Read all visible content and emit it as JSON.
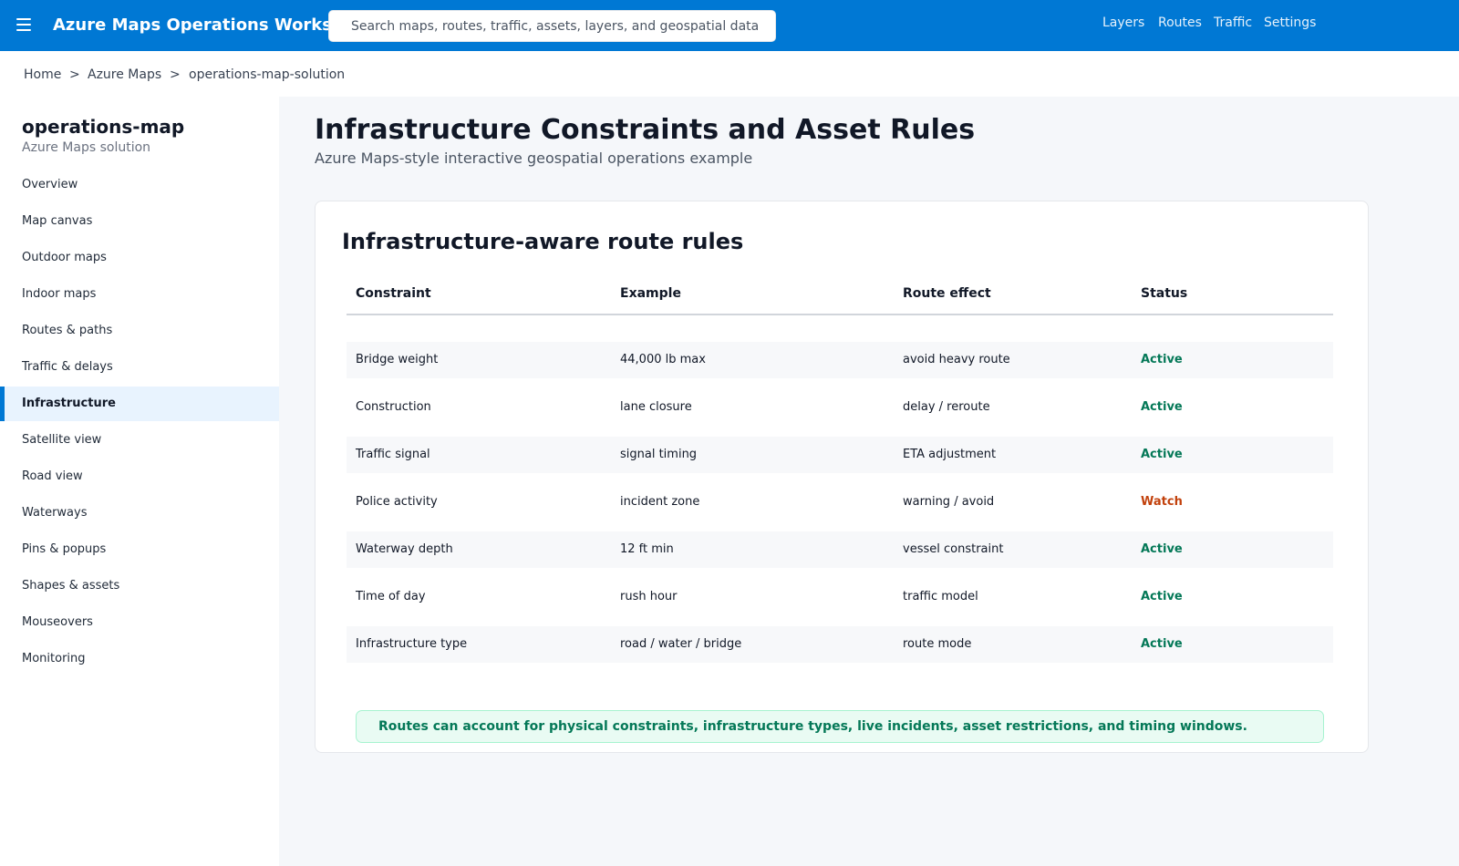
{
  "header": {
    "app_title": "Azure Maps Operations Workspace",
    "search_placeholder": "Search maps, routes, traffic, assets, layers, and geospatial data",
    "menu_icon": "hamburger-menu-icon",
    "nav": [
      "Layers",
      "Routes",
      "Traffic",
      "Settings"
    ]
  },
  "breadcrumb": {
    "items": [
      "Home",
      "Azure Maps",
      "operations-map-solution"
    ],
    "separator": ">"
  },
  "sidebar": {
    "title": "operations-map",
    "subtitle": "Azure Maps solution",
    "items": [
      {
        "label": "Overview",
        "active": false
      },
      {
        "label": "Map canvas",
        "active": false
      },
      {
        "label": "Outdoor maps",
        "active": false
      },
      {
        "label": "Indoor maps",
        "active": false
      },
      {
        "label": "Routes & paths",
        "active": false
      },
      {
        "label": "Traffic & delays",
        "active": false
      },
      {
        "label": "Infrastructure",
        "active": true
      },
      {
        "label": "Satellite view",
        "active": false
      },
      {
        "label": "Road view",
        "active": false
      },
      {
        "label": "Waterways",
        "active": false
      },
      {
        "label": "Pins & popups",
        "active": false
      },
      {
        "label": "Shapes & assets",
        "active": false
      },
      {
        "label": "Mouseovers",
        "active": false
      },
      {
        "label": "Monitoring",
        "active": false
      }
    ]
  },
  "main": {
    "title": "Infrastructure Constraints and Asset Rules",
    "subtitle": "Azure Maps-style interactive geospatial operations example",
    "card": {
      "title": "Infrastructure-aware route rules",
      "columns": [
        "Constraint",
        "Example",
        "Route effect",
        "Status"
      ],
      "rows": [
        {
          "constraint": "Bridge weight",
          "example": "44,000 lb max",
          "effect": "avoid heavy route",
          "status": "Active"
        },
        {
          "constraint": "Construction",
          "example": "lane closure",
          "effect": "delay / reroute",
          "status": "Active"
        },
        {
          "constraint": "Traffic signal",
          "example": "signal timing",
          "effect": "ETA adjustment",
          "status": "Active"
        },
        {
          "constraint": "Police activity",
          "example": "incident zone",
          "effect": "warning / avoid",
          "status": "Watch"
        },
        {
          "constraint": "Waterway depth",
          "example": "12 ft min",
          "effect": "vessel constraint",
          "status": "Active"
        },
        {
          "constraint": "Time of day",
          "example": "rush hour",
          "effect": "traffic model",
          "status": "Active"
        },
        {
          "constraint": "Infrastructure type",
          "example": "road / water / bridge",
          "effect": "route mode",
          "status": "Active"
        }
      ],
      "banner": "Routes can account for physical constraints, infrastructure types, live incidents, asset restrictions, and timing windows."
    }
  },
  "colors": {
    "brand": "#0078d4",
    "status_active": "#047857",
    "status_watch": "#c2410c",
    "banner_bg": "#e9fbf3"
  }
}
